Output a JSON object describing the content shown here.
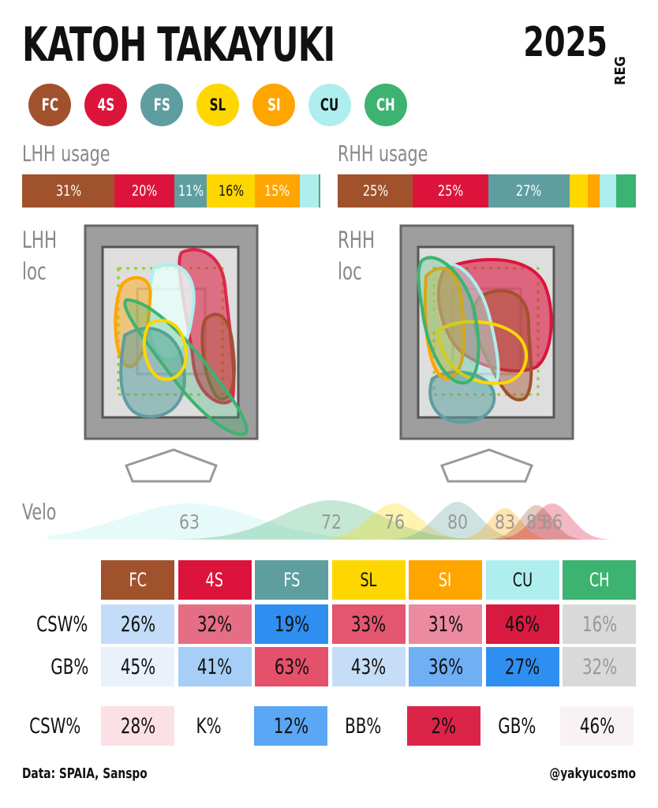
{
  "header": {
    "title": "KATOH TAKAYUKI",
    "year": "2025",
    "season": "REG"
  },
  "pitches": [
    {
      "code": "FC",
      "color": "#a0522d",
      "text": "#ffffff"
    },
    {
      "code": "4S",
      "color": "#dc143c",
      "text": "#ffffff"
    },
    {
      "code": "FS",
      "color": "#5f9ea0",
      "text": "#ffffff"
    },
    {
      "code": "SL",
      "color": "#ffd700",
      "text": "#111111"
    },
    {
      "code": "SI",
      "color": "#ffa500",
      "text": "#ffffff"
    },
    {
      "code": "CU",
      "color": "#afeeee",
      "text": "#111111"
    },
    {
      "code": "CH",
      "color": "#3cb371",
      "text": "#ffffff"
    }
  ],
  "chart_data": [
    {
      "type": "bar",
      "title": "LHH usage",
      "categories": [
        "FC",
        "4S",
        "FS",
        "SL",
        "SI",
        "CU",
        "CH"
      ],
      "values": [
        31,
        20,
        11,
        16,
        15,
        6.5,
        0.5
      ],
      "labels": [
        "31%",
        "20%",
        "11%",
        "16%",
        "15%",
        "",
        ""
      ],
      "unit": "%"
    },
    {
      "type": "bar",
      "title": "RHH usage",
      "categories": [
        "FC",
        "4S",
        "FS",
        "SL",
        "SI",
        "CU",
        "CH"
      ],
      "values": [
        25,
        25,
        27,
        6,
        4,
        5.5,
        6.5
      ],
      "labels": [
        "25%",
        "25%",
        "27%",
        "",
        "",
        "",
        ""
      ],
      "unit": "%"
    },
    {
      "type": "area",
      "title": "Velo",
      "categories": [
        "CU",
        "CH",
        "SL",
        "FS",
        "SI",
        "FC",
        "4S"
      ],
      "peaks_label": [
        "63",
        "72",
        "76",
        "80",
        "83",
        "85",
        "86"
      ],
      "peaks": [
        63,
        72,
        76,
        80,
        83,
        85,
        86
      ],
      "xlim": [
        54,
        90
      ]
    },
    {
      "type": "table",
      "columns": [
        "FC",
        "4S",
        "FS",
        "SL",
        "SI",
        "CU",
        "CH"
      ],
      "rows": [
        {
          "label": "CSW%",
          "values": [
            "26%",
            "32%",
            "19%",
            "33%",
            "31%",
            "46%",
            "16%"
          ],
          "colors": [
            "#c3dcf7",
            "#e56e85",
            "#2f8ff0",
            "#e4566f",
            "#eb8aa0",
            "#d91a40",
            "#d9d9d9"
          ],
          "text_colors": [
            "#111",
            "#111",
            "#111",
            "#111",
            "#111",
            "#111",
            "#999"
          ]
        },
        {
          "label": "GB%",
          "values": [
            "45%",
            "41%",
            "63%",
            "43%",
            "36%",
            "27%",
            "32%"
          ],
          "colors": [
            "#e9f1fb",
            "#a7cef7",
            "#e5506b",
            "#c6ddf7",
            "#6fb0f5",
            "#2f8ff0",
            "#d9d9d9"
          ],
          "text_colors": [
            "#111",
            "#111",
            "#111",
            "#111",
            "#111",
            "#111",
            "#999"
          ]
        }
      ]
    }
  ],
  "loc": {
    "lhh_label_1": "LHH",
    "lhh_label_2": "loc",
    "rhh_label_1": "RHH",
    "rhh_label_2": "loc"
  },
  "summary": [
    {
      "label": "CSW%",
      "value": "28%",
      "color": "#fbe0e5"
    },
    {
      "label": "K%",
      "value": "12%",
      "color": "#5aa7f5"
    },
    {
      "label": "BB%",
      "value": "2%",
      "color": "#dc2448"
    },
    {
      "label": "GB%",
      "value": "46%",
      "color": "#f9f2f4"
    }
  ],
  "footer": {
    "source": "Data: SPAIA, Sanspo",
    "handle": "@yakyucosmo"
  }
}
